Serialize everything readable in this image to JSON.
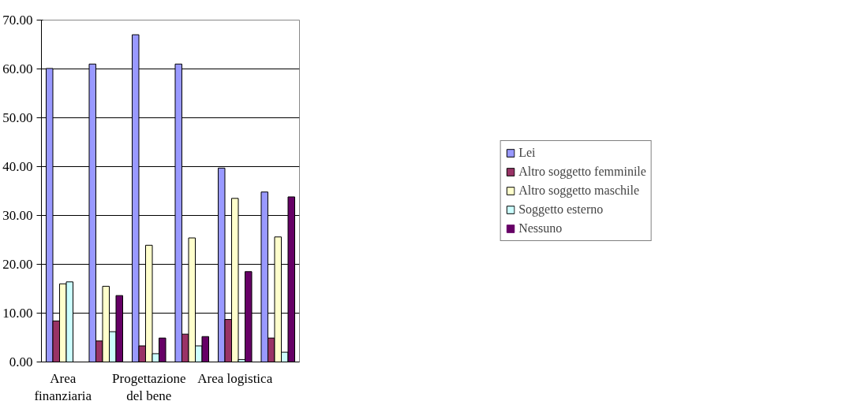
{
  "chart_data": {
    "type": "bar",
    "categories": [
      "Area finanziaria",
      null,
      "Progettazione del bene",
      null,
      "Area logistica",
      null
    ],
    "series": [
      {
        "name": "Lei",
        "color": "#9999ff",
        "values": [
          60.1,
          61.0,
          67.0,
          61.0,
          39.7,
          34.8
        ]
      },
      {
        "name": "Altro soggetto femminile",
        "color": "#993366",
        "values": [
          8.4,
          4.3,
          3.3,
          5.7,
          8.7,
          4.9
        ]
      },
      {
        "name": "Altro soggetto maschile",
        "color": "#ffffcc",
        "values": [
          16.0,
          15.5,
          23.9,
          25.4,
          33.5,
          25.6
        ]
      },
      {
        "name": "Soggetto esterno",
        "color": "#ccffff",
        "values": [
          16.4,
          6.2,
          1.7,
          3.3,
          0.5,
          2.0
        ]
      },
      {
        "name": "Nessuno",
        "color": "#660066",
        "values": [
          0,
          13.6,
          4.9,
          5.2,
          18.5,
          33.8
        ]
      }
    ],
    "ylim": [
      0,
      70
    ],
    "yticks": [
      {
        "value": 0,
        "label": "0.00"
      },
      {
        "value": 10,
        "label": "10.00"
      },
      {
        "value": 20,
        "label": "20.00"
      },
      {
        "value": 30,
        "label": "30.00"
      },
      {
        "value": 40,
        "label": "40.00"
      },
      {
        "value": 50,
        "label": "50.00"
      },
      {
        "value": 60,
        "label": "60.00"
      },
      {
        "value": 70,
        "label": "70.00"
      }
    ],
    "grid": "y",
    "legend": "right"
  }
}
